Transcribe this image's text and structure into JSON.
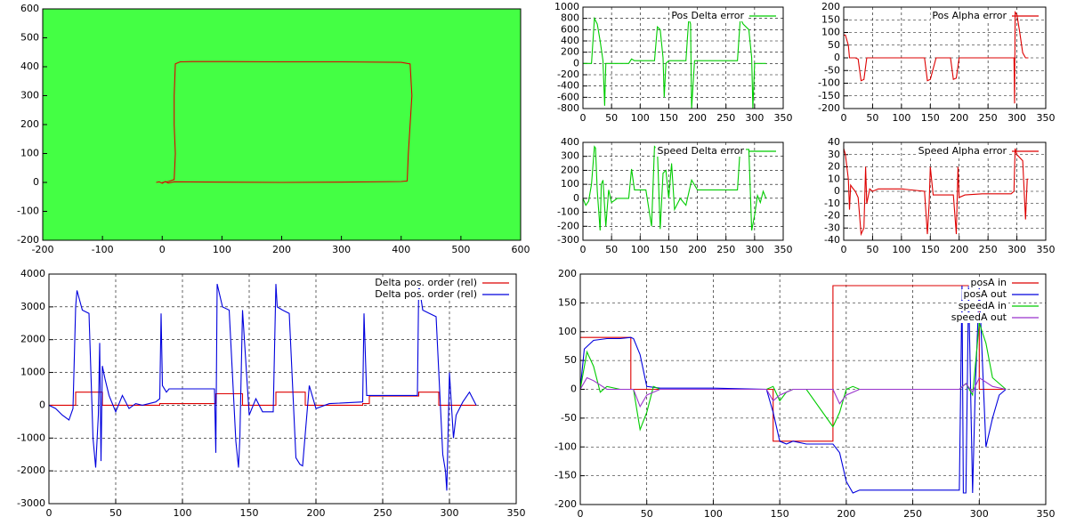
{
  "chart_data": [
    {
      "type": "line",
      "xlim": [
        -200,
        600
      ],
      "ylim": [
        -200,
        600
      ],
      "xticks": [
        -200,
        -100,
        0,
        100,
        200,
        300,
        400,
        500,
        600
      ],
      "yticks": [
        -200,
        -100,
        0,
        100,
        200,
        300,
        400,
        500,
        600
      ],
      "grid": false,
      "background": "#44ff44",
      "series": [
        {
          "color": "#dd0000",
          "x": [
            -10,
            -5,
            0,
            5,
            10,
            20,
            100,
            200,
            300,
            400,
            410,
            412,
            415,
            418,
            415,
            400,
            300,
            200,
            100,
            50,
            30,
            22,
            20,
            20,
            22,
            20,
            10,
            0
          ],
          "values": [
            0,
            2,
            -3,
            3,
            -2,
            2,
            1,
            0,
            1,
            3,
            5,
            100,
            200,
            300,
            410,
            415,
            417,
            417,
            418,
            418,
            417,
            410,
            300,
            200,
            100,
            10,
            3,
            0
          ]
        }
      ]
    },
    {
      "type": "line",
      "xlim": [
        0,
        350
      ],
      "ylim": [
        -800,
        1000
      ],
      "xticks": [
        0,
        50,
        100,
        150,
        200,
        250,
        300,
        350
      ],
      "yticks": [
        -800,
        -600,
        -400,
        -200,
        0,
        200,
        400,
        600,
        800,
        1000
      ],
      "grid": true,
      "x": [
        0,
        10,
        15,
        20,
        25,
        30,
        35,
        38,
        40,
        45,
        80,
        85,
        90,
        125,
        130,
        135,
        140,
        142,
        145,
        150,
        180,
        185,
        188,
        190,
        195,
        230,
        270,
        275,
        280,
        290,
        295,
        297,
        300,
        310,
        320
      ],
      "series": [
        {
          "name": "Pos Delta error",
          "color": "#00cc00",
          "values": [
            0,
            0,
            0,
            800,
            700,
            400,
            50,
            -750,
            0,
            0,
            0,
            80,
            50,
            50,
            650,
            600,
            100,
            -600,
            0,
            50,
            50,
            800,
            700,
            -800,
            50,
            50,
            50,
            800,
            700,
            600,
            100,
            -800,
            0,
            0,
            0
          ]
        }
      ]
    },
    {
      "type": "line",
      "xlim": [
        0,
        350
      ],
      "ylim": [
        -200,
        200
      ],
      "xticks": [
        0,
        50,
        100,
        150,
        200,
        250,
        300,
        350
      ],
      "yticks": [
        -200,
        -150,
        -100,
        -50,
        0,
        50,
        100,
        150,
        200
      ],
      "grid": true,
      "x": [
        0,
        3,
        8,
        10,
        20,
        25,
        30,
        35,
        40,
        50,
        100,
        140,
        145,
        150,
        160,
        185,
        190,
        195,
        200,
        230,
        280,
        290,
        295,
        296,
        297,
        300,
        305,
        310,
        315,
        320
      ],
      "series": [
        {
          "name": "Pos Alpha error",
          "color": "#dd0000",
          "values": [
            90,
            90,
            50,
            0,
            0,
            -5,
            -90,
            -85,
            0,
            0,
            0,
            0,
            -90,
            -85,
            0,
            0,
            -85,
            -80,
            0,
            0,
            0,
            0,
            0,
            -180,
            180,
            170,
            100,
            20,
            0,
            0
          ]
        }
      ]
    },
    {
      "type": "line",
      "xlim": [
        0,
        350
      ],
      "ylim": [
        -300,
        400
      ],
      "xticks": [
        0,
        50,
        100,
        150,
        200,
        250,
        300,
        350
      ],
      "yticks": [
        -300,
        -200,
        -100,
        0,
        100,
        200,
        300,
        400
      ],
      "grid": true,
      "x": [
        0,
        5,
        10,
        15,
        20,
        22,
        25,
        30,
        32,
        35,
        40,
        45,
        50,
        60,
        70,
        80,
        85,
        90,
        110,
        120,
        125,
        130,
        135,
        140,
        145,
        150,
        155,
        160,
        170,
        180,
        190,
        200,
        220,
        250,
        270,
        275,
        280,
        285,
        290,
        295,
        300,
        305,
        310,
        315,
        320
      ],
      "series": [
        {
          "name": "Speed Delta error",
          "color": "#00cc00",
          "values": [
            0,
            -50,
            -20,
            100,
            370,
            360,
            50,
            -230,
            100,
            130,
            -200,
            60,
            -30,
            0,
            0,
            0,
            210,
            60,
            60,
            -200,
            370,
            350,
            -220,
            180,
            200,
            0,
            250,
            -80,
            0,
            -50,
            130,
            60,
            60,
            60,
            60,
            370,
            350,
            350,
            350,
            -230,
            -120,
            20,
            -30,
            50,
            0
          ]
        }
      ]
    },
    {
      "type": "line",
      "xlim": [
        0,
        350
      ],
      "ylim": [
        -40,
        40
      ],
      "xticks": [
        0,
        50,
        100,
        150,
        200,
        250,
        300,
        350
      ],
      "yticks": [
        -40,
        -30,
        -20,
        -10,
        0,
        10,
        20,
        30,
        40
      ],
      "grid": true,
      "x": [
        0,
        3,
        8,
        10,
        12,
        15,
        20,
        25,
        30,
        35,
        38,
        40,
        45,
        50,
        60,
        90,
        100,
        140,
        145,
        148,
        150,
        155,
        190,
        195,
        198,
        200,
        210,
        240,
        280,
        290,
        295,
        297,
        300,
        310,
        315,
        318,
        320
      ],
      "series": [
        {
          "name": "Speed Alpha error",
          "color": "#dd0000",
          "values": [
            35,
            30,
            10,
            -15,
            5,
            3,
            0,
            -5,
            -35,
            -30,
            20,
            -10,
            2,
            0,
            2,
            2,
            2,
            0,
            -35,
            -10,
            20,
            -3,
            -3,
            -35,
            20,
            -5,
            -3,
            -2,
            -2,
            -2,
            0,
            35,
            30,
            25,
            -23,
            10,
            10
          ]
        }
      ]
    },
    {
      "type": "line",
      "xlim": [
        0,
        350
      ],
      "ylim": [
        -3000,
        4000
      ],
      "xticks": [
        0,
        50,
        100,
        150,
        200,
        250,
        300,
        350
      ],
      "yticks": [
        -3000,
        -2000,
        -1000,
        0,
        1000,
        2000,
        3000,
        4000
      ],
      "grid": true,
      "series": [
        {
          "name": "Delta pos. order (rel)",
          "color": "#dd0000",
          "x": [
            0,
            20,
            20,
            40,
            40,
            83,
            83,
            125,
            125,
            145,
            145,
            170,
            170,
            192,
            192,
            235,
            235,
            240,
            240,
            277,
            277,
            292,
            292,
            320
          ],
          "values": [
            0,
            0,
            400,
            400,
            0,
            0,
            50,
            50,
            350,
            350,
            0,
            0,
            400,
            400,
            0,
            0,
            50,
            50,
            280,
            280,
            400,
            400,
            0,
            0
          ]
        },
        {
          "name": "Delta pos. order (rel)",
          "color": "#0000dd",
          "x": [
            0,
            5,
            10,
            15,
            18,
            20,
            21,
            25,
            30,
            33,
            35,
            37,
            38,
            39,
            40,
            41,
            42,
            45,
            50,
            55,
            60,
            65,
            70,
            80,
            83,
            84,
            85,
            88,
            90,
            100,
            124,
            125,
            126,
            130,
            135,
            140,
            142,
            143,
            145,
            150,
            155,
            160,
            168,
            170,
            171,
            175,
            180,
            185,
            188,
            190,
            195,
            200,
            210,
            235,
            236,
            238,
            240,
            260,
            276,
            277,
            280,
            285,
            290,
            295,
            297,
            298,
            300,
            303,
            305,
            310,
            315,
            320
          ],
          "values": [
            0,
            -100,
            -300,
            -450,
            -100,
            3000,
            3500,
            2900,
            2800,
            -1000,
            -1900,
            -300,
            1900,
            -1700,
            1200,
            1000,
            800,
            300,
            -200,
            300,
            -100,
            50,
            0,
            100,
            200,
            2800,
            600,
            400,
            500,
            500,
            500,
            -1450,
            3700,
            3000,
            2900,
            -1100,
            -1900,
            -1000,
            2900,
            -300,
            200,
            -200,
            -200,
            3700,
            3000,
            2900,
            2800,
            -1600,
            -1800,
            -1850,
            600,
            -100,
            50,
            100,
            2800,
            300,
            300,
            300,
            300,
            3700,
            2900,
            2800,
            2700,
            -1500,
            -2000,
            -2600,
            1000,
            -1000,
            -300,
            100,
            400,
            0
          ]
        }
      ]
    },
    {
      "type": "line",
      "xlim": [
        0,
        350
      ],
      "ylim": [
        -200,
        200
      ],
      "xticks": [
        0,
        50,
        100,
        150,
        200,
        250,
        300,
        350
      ],
      "yticks": [
        -200,
        -150,
        -100,
        -50,
        0,
        50,
        100,
        150,
        200
      ],
      "grid": true,
      "series": [
        {
          "name": "posA in",
          "color": "#dd0000",
          "x": [
            0,
            38,
            38,
            145,
            145,
            190,
            190,
            300,
            300,
            320
          ],
          "values": [
            90,
            90,
            0,
            0,
            -90,
            -90,
            180,
            180,
            0,
            0
          ]
        },
        {
          "name": "posA out",
          "color": "#0000dd",
          "x": [
            0,
            3,
            10,
            20,
            30,
            38,
            40,
            45,
            50,
            60,
            100,
            140,
            145,
            150,
            155,
            160,
            170,
            180,
            190,
            195,
            200,
            205,
            210,
            250,
            285,
            287,
            288,
            290,
            292,
            295,
            297,
            300,
            305,
            310,
            315,
            320
          ],
          "values": [
            0,
            70,
            85,
            88,
            88,
            90,
            88,
            60,
            5,
            2,
            2,
            0,
            -40,
            -90,
            -95,
            -90,
            -95,
            -95,
            -95,
            -110,
            -160,
            -180,
            -175,
            -175,
            -175,
            180,
            -180,
            -180,
            180,
            -180,
            0,
            180,
            -100,
            -50,
            -10,
            0
          ]
        },
        {
          "name": "speedA in",
          "color": "#00cc00",
          "x": [
            0,
            5,
            10,
            15,
            20,
            30,
            40,
            45,
            50,
            55,
            60,
            100,
            140,
            145,
            150,
            155,
            160,
            170,
            190,
            195,
            200,
            205,
            210,
            285,
            290,
            295,
            300,
            305,
            310,
            320
          ],
          "values": [
            0,
            65,
            40,
            -5,
            5,
            0,
            0,
            -70,
            -40,
            5,
            0,
            0,
            0,
            5,
            -20,
            -5,
            0,
            0,
            -65,
            -40,
            0,
            5,
            0,
            0,
            10,
            -10,
            115,
            80,
            20,
            0
          ]
        },
        {
          "name": "speedA out",
          "color": "#9933cc",
          "x": [
            0,
            5,
            10,
            20,
            40,
            45,
            50,
            60,
            140,
            145,
            150,
            160,
            190,
            195,
            200,
            210,
            285,
            290,
            295,
            300,
            310,
            320
          ],
          "values": [
            0,
            20,
            15,
            0,
            0,
            -30,
            -10,
            0,
            0,
            -20,
            -10,
            0,
            0,
            -25,
            -10,
            0,
            0,
            10,
            -5,
            20,
            5,
            0
          ]
        }
      ]
    }
  ]
}
